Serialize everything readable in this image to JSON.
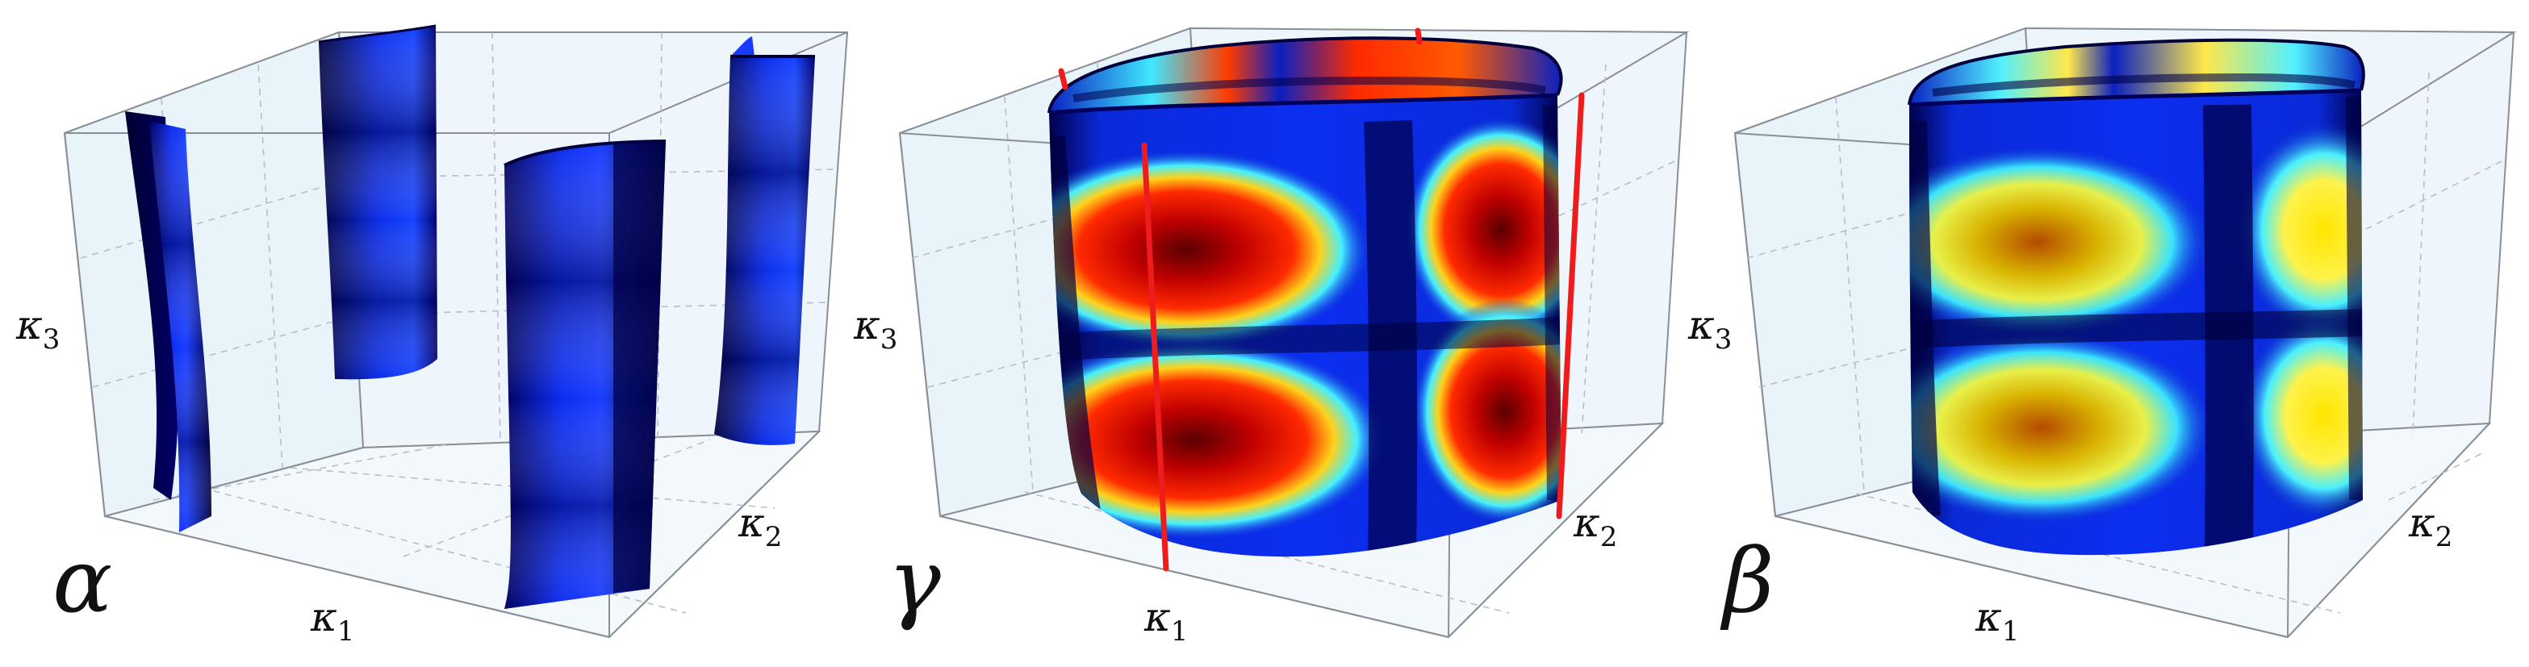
{
  "panels": [
    {
      "id": "alpha",
      "name": "α",
      "axes": {
        "x": "κ",
        "x_sub": "1",
        "y": "κ",
        "y_sub": "2",
        "z": "κ",
        "z_sub": "3"
      }
    },
    {
      "id": "gamma",
      "name": "γ",
      "axes": {
        "x": "κ",
        "x_sub": "1",
        "y": "κ",
        "y_sub": "2",
        "z": "κ",
        "z_sub": "3"
      }
    },
    {
      "id": "beta",
      "name": "β",
      "axes": {
        "x": "κ",
        "x_sub": "1",
        "y": "κ",
        "y_sub": "2",
        "z": "κ",
        "z_sub": "3"
      }
    }
  ],
  "colors": {
    "box_edge": "#8a8f96",
    "box_face": "#eef6fb",
    "grid_dash": "#b9bec4",
    "highlight_line": "#ee1c1c",
    "surface_dark": "#00005a",
    "surface_blue": "#0a2cff",
    "surface_cyan": "#35e8ff",
    "surface_yellow": "#f2f03a",
    "surface_red": "#c80000"
  }
}
